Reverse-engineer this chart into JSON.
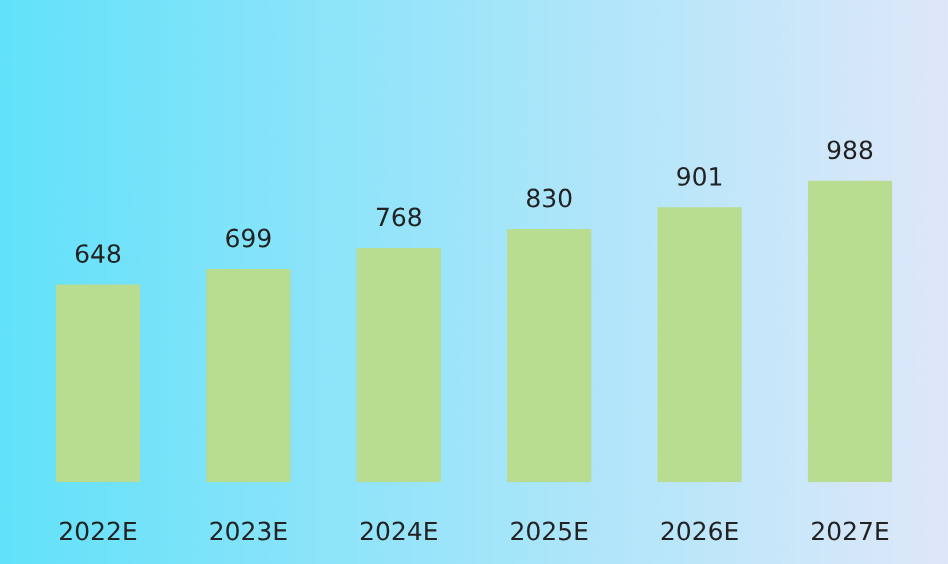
{
  "chart_data": {
    "type": "bar",
    "categories": [
      "2022E",
      "2023E",
      "2024E",
      "2025E",
      "2026E",
      "2027E"
    ],
    "values": [
      648,
      699,
      768,
      830,
      901,
      988
    ],
    "color": "#b8dc90",
    "data_labels": true
  }
}
